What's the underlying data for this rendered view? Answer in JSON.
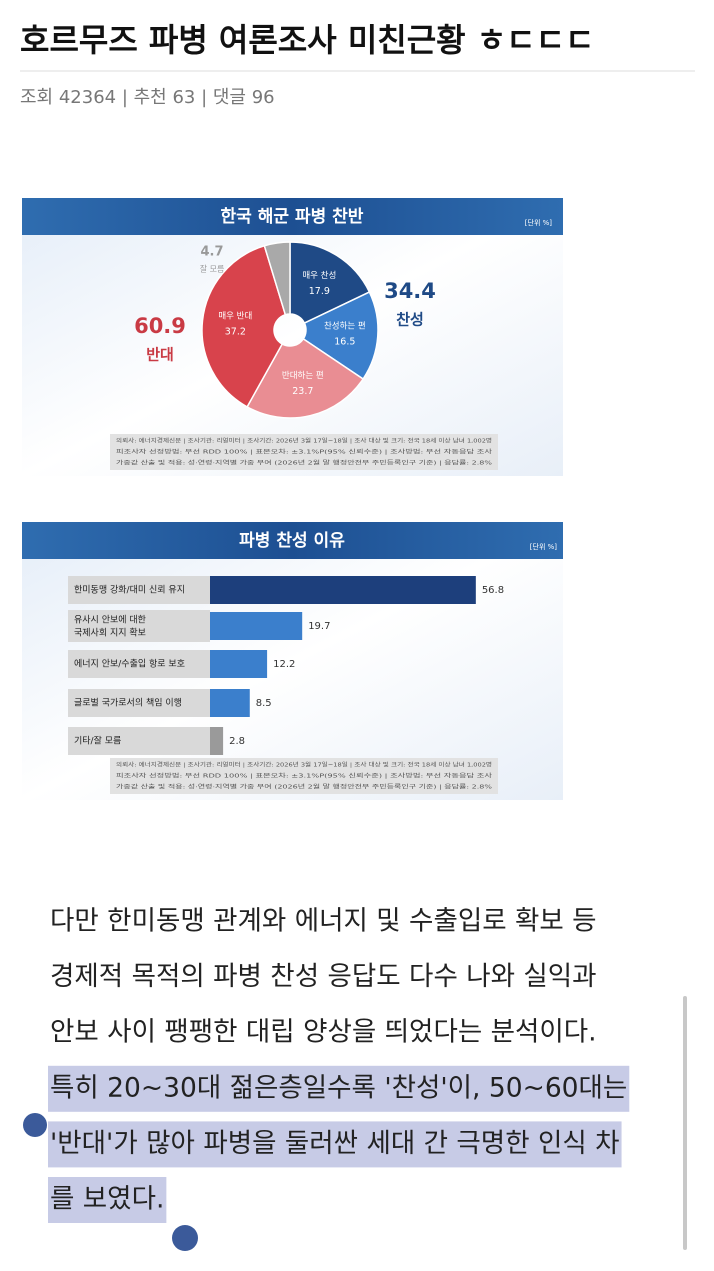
{
  "post": {
    "title": "호르무즈 파병 여론조사 미친근황 ㅎㄷㄷㄷ",
    "meta": "조회 42364 | 추천 63 | 댓글 96"
  },
  "chart_data": [
    {
      "type": "pie",
      "title": "한국 해군 파병 찬반",
      "unit": "[단위 %]",
      "categories": [
        "매우 찬성",
        "찬성하는 편",
        "반대하는 편",
        "매우 반대",
        "잘 모름"
      ],
      "values": [
        17.9,
        16.5,
        23.7,
        37.2,
        4.7
      ],
      "colors": [
        "#1f4a86",
        "#3b7fcc",
        "#e98d93",
        "#d8434c",
        "#a9a9a9"
      ],
      "annotations": [
        {
          "value": 34.4,
          "label": "찬성",
          "color": "#1f4a86"
        },
        {
          "value": 60.9,
          "label": "반대",
          "color": "#c93a44"
        }
      ],
      "note": [
        "의뢰사: 에너지경제신문 | 조사기관: 리얼미터 | 조사기간: 2026년 3월 17일~18일 | 조사 대상 및 크기: 전국 18세 이상 남녀 1,002명",
        "피조사자 선정방법: 무선 RDD 100% | 표본오차: ±3.1%P(95% 신뢰수준) | 조사방법: 무선 자동응답 조사",
        "가중값 산출 및 적용: 성·연령·지역별 가중 부여 (2026년 2월 말 행정안전부 주민등록인구 기준) | 응답률: 2.8%"
      ]
    },
    {
      "type": "hbar",
      "title": "파병 찬성 이유",
      "unit": "[단위 %]",
      "categories": [
        "한미동맹 강화/대미 신뢰 유지",
        "유사시 안보에 대한\n국제사회 지지 확보",
        "에너지 안보/수출입 항로 보호",
        "글로벌 국가로서의 책임 이행",
        "기타/잘 모름"
      ],
      "values": [
        56.8,
        19.7,
        12.2,
        8.5,
        2.8
      ],
      "colors": [
        "#1d3f7c",
        "#3b7fcc",
        "#3b7fcc",
        "#3b7fcc",
        "#9a9a9a"
      ],
      "note": [
        "의뢰사: 에너지경제신문 | 조사기관: 리얼미터 | 조사기간: 2026년 3월 17일~18일 | 조사 대상 및 크기: 전국 18세 이상 남녀 1,002명",
        "피조사자 선정방법: 무선 RDD 100% | 표본오차: ±3.1%P(95% 신뢰수준) | 조사방법: 무선 자동응답 조사",
        "가중값 산출 및 적용: 성·연령·지역별 가중 부여 (2026년 2월 말 행정안전부 주민등록인구 기준) | 응답률: 2.8%"
      ]
    }
  ],
  "article": {
    "lines": [
      "다만 한미동맹 관계와 에너지 및 수출입로 확보 등",
      "경제적 목적의 파병 찬성 응답도 다수 나와 실익과",
      "안보 사이 팽팽한 대립 양상을 띄었다는 분석이다."
    ],
    "highlighted_lines": [
      "특히 20~30대 젊은층일수록 '찬성'이, 50~60대는",
      "'반대'가 많아 파병을 둘러싼 세대 간 극명한 인식 차",
      "를 보였다."
    ]
  }
}
